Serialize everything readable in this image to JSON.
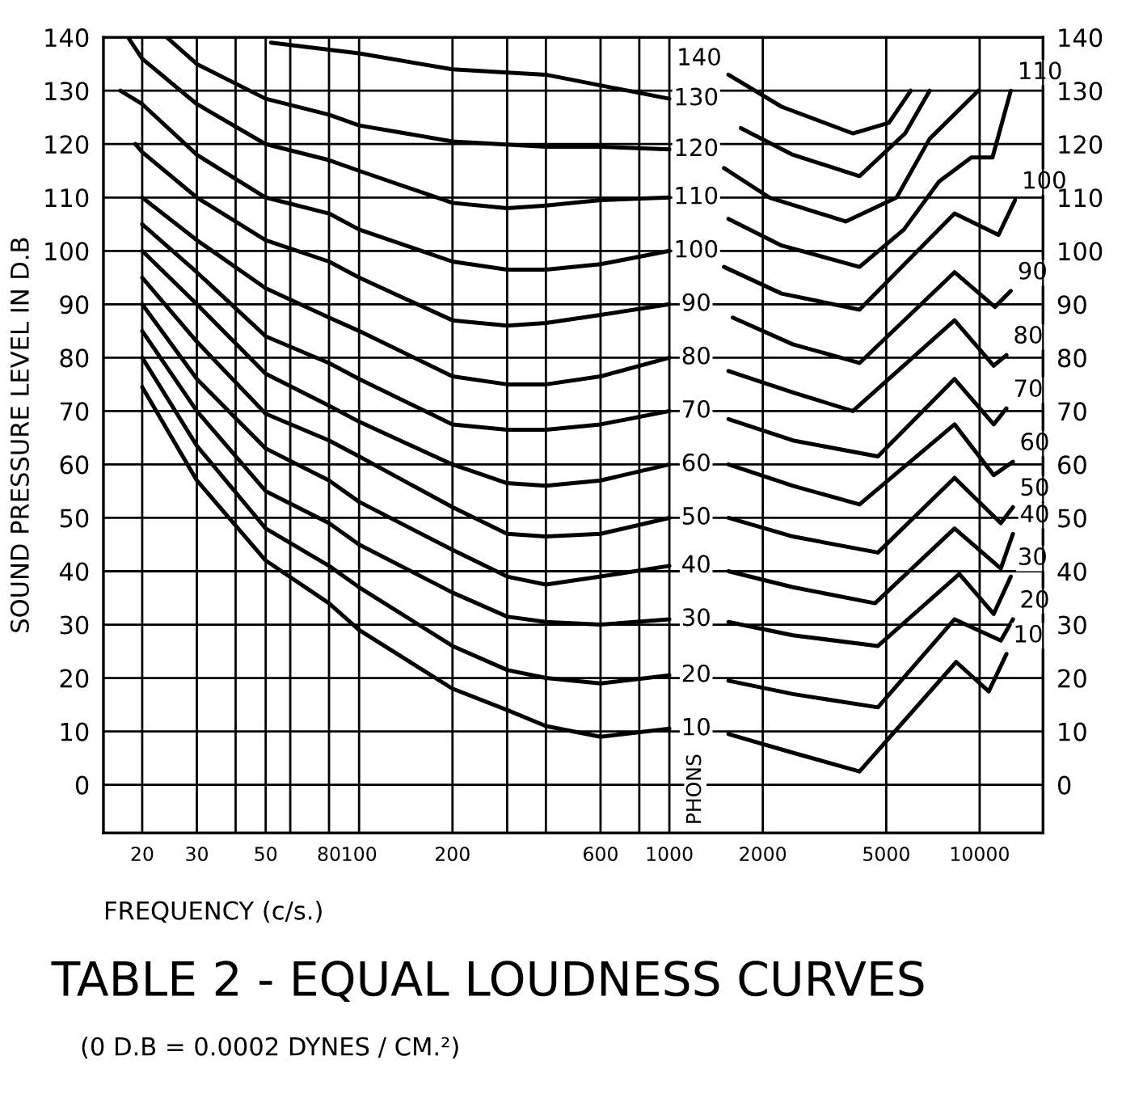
{
  "chart_data": {
    "type": "line",
    "title": "TABLE 2 - EQUAL LOUDNESS CURVES",
    "subtitle": "(0 D.B = 0.0002 DYNES / CM.²)",
    "xlabel": "FREQUENCY (c/s.)",
    "ylabel": "SOUND PRESSURE LEVEL IN D.B",
    "log": "x",
    "xlim": [
      15,
      16000
    ],
    "xticks": [
      20,
      30,
      {
        "value": 40,
        "label": null
      },
      50,
      {
        "value": 60,
        "label": null
      },
      80,
      100,
      200,
      {
        "value": 300,
        "label": null
      },
      {
        "value": 400,
        "label": null
      },
      600,
      {
        "value": 800,
        "label": null
      },
      1000,
      2000,
      5000,
      10000
    ],
    "ylim": [
      -9,
      140
    ],
    "yticks": [
      0,
      10,
      20,
      30,
      40,
      50,
      60,
      70,
      80,
      90,
      100,
      110,
      120,
      130,
      140
    ],
    "y2lim": [
      -9,
      140
    ],
    "y2ticks": [
      0,
      10,
      20,
      30,
      40,
      50,
      60,
      70,
      80,
      90,
      100,
      110,
      120,
      130,
      140
    ],
    "grid": true,
    "line_style": "solid",
    "series": [
      {
        "name": "10",
        "color": "#000000",
        "x": [
          20,
          30,
          50,
          80,
          100,
          200,
          300,
          400,
          600,
          1000,
          1220,
          1550,
          2500,
          4100,
          8400,
          10700,
          12200
        ],
        "values": [
          74.5,
          57,
          42,
          34,
          29,
          18,
          14,
          11,
          9,
          10.5,
          null,
          9.5,
          6,
          2.5,
          23,
          17.5,
          24.5
        ]
      },
      {
        "name": "20",
        "color": "#000000",
        "x": [
          20,
          30,
          50,
          80,
          100,
          200,
          300,
          400,
          600,
          1000,
          1220,
          1550,
          2500,
          4700,
          8300,
          11700,
          12800
        ],
        "values": [
          80,
          63.5,
          48,
          41,
          37,
          26,
          21.5,
          20,
          19,
          20.5,
          null,
          19.5,
          17,
          14.5,
          31,
          27,
          31
        ]
      },
      {
        "name": "30",
        "color": "#000000",
        "x": [
          20,
          30,
          50,
          80,
          100,
          200,
          300,
          400,
          600,
          1000,
          1220,
          1550,
          2500,
          4700,
          8600,
          11100,
          12600
        ],
        "values": [
          85,
          70,
          55,
          49,
          45,
          36,
          31.5,
          30.5,
          30,
          31,
          null,
          30.5,
          28,
          26,
          39.5,
          32,
          39
        ]
      },
      {
        "name": "40",
        "color": "#000000",
        "x": [
          20,
          30,
          50,
          80,
          100,
          200,
          300,
          400,
          600,
          1000,
          1220,
          1550,
          2500,
          4600,
          8300,
          11700,
          12800
        ],
        "values": [
          90,
          76,
          63,
          57,
          53,
          44,
          39,
          37.5,
          39,
          41,
          null,
          40,
          37,
          34,
          48,
          40.5,
          47
        ]
      },
      {
        "name": "50",
        "color": "#000000",
        "x": [
          20,
          30,
          50,
          80,
          100,
          200,
          300,
          400,
          600,
          1000,
          1220,
          1550,
          2500,
          4700,
          8300,
          11700,
          12800
        ],
        "values": [
          95,
          83,
          69.5,
          64.5,
          61.5,
          52,
          47,
          46.5,
          47,
          50,
          null,
          50,
          46.5,
          43.5,
          57.5,
          49,
          52
        ]
      },
      {
        "name": "60",
        "color": "#000000",
        "x": [
          20,
          30,
          50,
          80,
          100,
          200,
          300,
          400,
          600,
          1000,
          1220,
          1550,
          2500,
          4100,
          8300,
          11100,
          12800
        ],
        "values": [
          100,
          90,
          77,
          71,
          68,
          60,
          56.5,
          56,
          57,
          60,
          null,
          60,
          56,
          52.5,
          67.5,
          58,
          60.5
        ]
      },
      {
        "name": "70",
        "color": "#000000",
        "x": [
          20,
          30,
          50,
          80,
          100,
          200,
          300,
          400,
          600,
          1000,
          1220,
          1550,
          2500,
          4700,
          8300,
          11100,
          12200
        ],
        "values": [
          105,
          96,
          84,
          79,
          76,
          67.5,
          66.5,
          66.5,
          67.5,
          70,
          null,
          68.5,
          64.5,
          61.5,
          76,
          67.5,
          70.5
        ]
      },
      {
        "name": "80",
        "color": "#000000",
        "x": [
          20,
          30,
          50,
          80,
          100,
          200,
          300,
          400,
          600,
          1000,
          1220,
          1550,
          2500,
          3900,
          8300,
          11100,
          12200
        ],
        "values": [
          110,
          102,
          93,
          87.5,
          85,
          76.5,
          75,
          75,
          76.5,
          80,
          null,
          77.5,
          73.5,
          70,
          87,
          78.5,
          80.5
        ]
      },
      {
        "name": "90",
        "color": "#000000",
        "x": [
          19,
          20,
          30,
          50,
          80,
          100,
          200,
          300,
          400,
          600,
          1000,
          1220,
          1600,
          2500,
          4100,
          8300,
          11200,
          12600
        ],
        "values": [
          120,
          118.5,
          110,
          102,
          98,
          95,
          87,
          86,
          86.5,
          88,
          90,
          null,
          87.5,
          82.5,
          79,
          96,
          89.5,
          92.5
        ]
      },
      {
        "name": "100",
        "color": "#000000",
        "x": [
          17,
          20,
          30,
          50,
          80,
          100,
          200,
          300,
          400,
          600,
          1000,
          1220,
          1500,
          2300,
          4100,
          8300,
          11500,
          13000
        ],
        "values": [
          130,
          127.5,
          118,
          110,
          107,
          104,
          98,
          96.5,
          96.5,
          97.5,
          100,
          null,
          97,
          92,
          89,
          107,
          103,
          109.5
        ]
      },
      {
        "name": "110",
        "color": "#000000",
        "x": [
          18,
          20,
          30,
          50,
          80,
          100,
          200,
          300,
          400,
          600,
          1000,
          1220,
          1550,
          2300,
          4100,
          5700,
          7400,
          9400,
          11000,
          12600
        ],
        "values": [
          140,
          136,
          127.5,
          120,
          117,
          115,
          109,
          108,
          108.5,
          109.5,
          110,
          null,
          106,
          101,
          97,
          104,
          113,
          117.5,
          117.5,
          130
        ]
      },
      {
        "name": "120",
        "color": "#000000",
        "x": [
          24,
          30,
          50,
          80,
          100,
          200,
          400,
          600,
          1000,
          1220,
          1500,
          2100,
          3700,
          5400,
          6900,
          9900
        ],
        "values": [
          140,
          135,
          128.5,
          125.5,
          123.5,
          120.5,
          119.5,
          119.5,
          119,
          null,
          115.5,
          110,
          105.5,
          110,
          121,
          130
        ]
      },
      {
        "name": "130",
        "color": "#000000",
        "x": [
          52,
          100,
          200,
          400,
          600,
          1000,
          1220,
          1700,
          2500,
          4100,
          5750,
          6900
        ],
        "values": [
          139,
          137,
          134,
          133,
          131,
          128.5,
          null,
          123,
          118,
          114,
          122,
          130
        ]
      },
      {
        "name": "140",
        "color": "#000000",
        "x": [
          1550,
          2300,
          3900,
          5100,
          6000
        ],
        "values": [
          133,
          127,
          122,
          124,
          130
        ]
      }
    ],
    "annotations": [
      {
        "text": "10",
        "x": 12200,
        "y": 24.5
      },
      {
        "text": "20",
        "x": 12800,
        "y": 31
      },
      {
        "text": "30",
        "x": 12600,
        "y": 39
      },
      {
        "text": "40",
        "x": 12800,
        "y": 47
      },
      {
        "text": "50",
        "x": 12800,
        "y": 52
      },
      {
        "text": "60",
        "x": 12800,
        "y": 60.5
      },
      {
        "text": "70",
        "x": 12200,
        "y": 70.5
      },
      {
        "text": "80",
        "x": 12200,
        "y": 80.5
      },
      {
        "text": "90",
        "x": 12600,
        "y": 92.5
      },
      {
        "text": "100",
        "x": 13000,
        "y": 109.5
      },
      {
        "text": "110",
        "x": 12600,
        "y": 130
      },
      "PHONS"
    ]
  }
}
